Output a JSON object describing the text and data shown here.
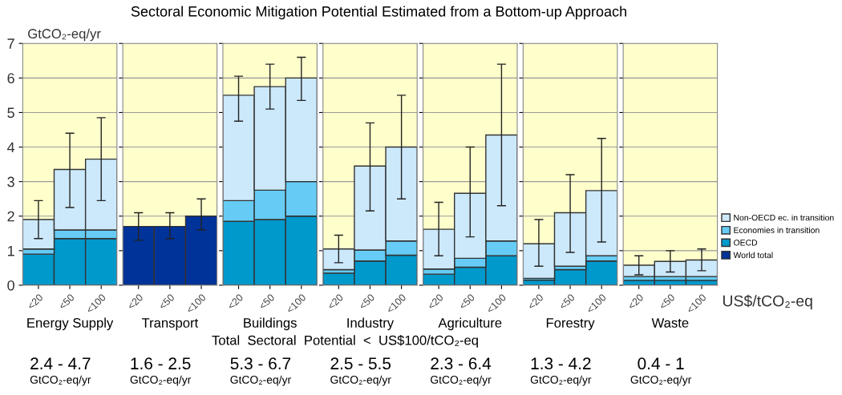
{
  "chart_data": [
    {
      "type": "other",
      "title": "Sectoral Economic Mitigation Potential Estimated from a Bottom-up Approach",
      "annotations": [
        "Total  Sectoral  Potential  <  US$100/tCO₂-eq"
      ]
    },
    {
      "type": "bar",
      "stacked": true,
      "ylabel": "GtCO₂-eq/yr",
      "xlabel": "Energy Supply",
      "categories": [
        "<20",
        "<50",
        "<100"
      ],
      "ylim": [
        0,
        7
      ],
      "yticks": [
        0,
        1,
        2,
        3,
        4,
        5,
        6,
        7
      ],
      "grid": "y",
      "legend": "right",
      "bands": [
        {
          "axis": "y",
          "from": 0,
          "to": 7,
          "color": "#ffffcc"
        }
      ],
      "series": [
        {
          "name": "OECD",
          "color": "#0099cc",
          "values": [
            0.9,
            1.35,
            1.35
          ]
        },
        {
          "name": "Economies in transition",
          "color": "#66ccf5",
          "values": [
            0.15,
            0.25,
            0.25
          ]
        },
        {
          "name": "Non-OECD ec. in transition",
          "color": "#cce9fb",
          "values": [
            0.85,
            1.75,
            2.05
          ],
          "errors": [
            [
              1.35,
              2.45
            ],
            [
              2.25,
              4.4
            ],
            [
              2.45,
              4.85
            ]
          ]
        }
      ],
      "annotations": [
        "2.4 - 4.7",
        "GtCO₂-eq/yr"
      ]
    },
    {
      "type": "bar",
      "stacked": true,
      "xlabel": "Transport",
      "categories": [
        "<20",
        "<50",
        "<100"
      ],
      "ylim": [
        0,
        7
      ],
      "yticks": [
        0,
        1,
        2,
        3,
        4,
        5,
        6,
        7
      ],
      "grid": "y",
      "tick_labels": "x",
      "bands": [
        {
          "axis": "y",
          "from": 0,
          "to": 7,
          "color": "#ffffcc"
        }
      ],
      "series": [
        {
          "name": "World total",
          "color": "#003399",
          "values": [
            1.7,
            1.7,
            2.0
          ],
          "errors": [
            [
              1.3,
              2.1
            ],
            [
              1.35,
              2.1
            ],
            [
              1.6,
              2.5
            ]
          ]
        }
      ],
      "annotations": [
        "1.6 - 2.5",
        "GtCO₂-eq/yr"
      ]
    },
    {
      "type": "bar",
      "stacked": true,
      "xlabel": "Buildings",
      "categories": [
        "<20",
        "<50",
        "<100"
      ],
      "ylim": [
        0,
        7
      ],
      "yticks": [
        0,
        1,
        2,
        3,
        4,
        5,
        6,
        7
      ],
      "grid": "y",
      "tick_labels": "x",
      "bands": [
        {
          "axis": "y",
          "from": 0,
          "to": 7,
          "color": "#ffffcc"
        }
      ],
      "series": [
        {
          "name": "OECD",
          "color": "#0099cc",
          "values": [
            1.85,
            1.9,
            2.0
          ]
        },
        {
          "name": "Economies in transition",
          "color": "#66ccf5",
          "values": [
            0.6,
            0.85,
            1.0
          ]
        },
        {
          "name": "Non-OECD ec. in transition",
          "color": "#cce9fb",
          "values": [
            3.05,
            3.0,
            3.0
          ],
          "errors": [
            [
              4.75,
              6.05
            ],
            [
              5.1,
              6.4
            ],
            [
              5.35,
              6.6
            ]
          ]
        }
      ],
      "annotations": [
        "5.3 - 6.7",
        "GtCO₂-eq/yr"
      ]
    },
    {
      "type": "bar",
      "stacked": true,
      "xlabel": "Industry",
      "categories": [
        "<20",
        "<50",
        "<100"
      ],
      "ylim": [
        0,
        7
      ],
      "yticks": [
        0,
        1,
        2,
        3,
        4,
        5,
        6,
        7
      ],
      "grid": "y",
      "tick_labels": "x",
      "bands": [
        {
          "axis": "y",
          "from": 0,
          "to": 7,
          "color": "#ffffcc"
        }
      ],
      "series": [
        {
          "name": "OECD",
          "color": "#0099cc",
          "values": [
            0.35,
            0.7,
            0.87
          ]
        },
        {
          "name": "Economies in transition",
          "color": "#66ccf5",
          "values": [
            0.1,
            0.32,
            0.41
          ]
        },
        {
          "name": "Non-OECD ec. in transition",
          "color": "#cce9fb",
          "values": [
            0.6,
            2.43,
            2.72
          ],
          "errors": [
            [
              0.65,
              1.45
            ],
            [
              2.15,
              4.7
            ],
            [
              2.5,
              5.5
            ]
          ]
        }
      ],
      "annotations": [
        "2.5 - 5.5",
        "GtCO₂-eq/yr"
      ]
    },
    {
      "type": "bar",
      "stacked": true,
      "xlabel": "Agriculture",
      "categories": [
        "<20",
        "<50",
        "<100"
      ],
      "ylim": [
        0,
        7
      ],
      "yticks": [
        0,
        1,
        2,
        3,
        4,
        5,
        6,
        7
      ],
      "grid": "y",
      "tick_labels": "x",
      "bands": [
        {
          "axis": "y",
          "from": 0,
          "to": 7,
          "color": "#ffffcc"
        }
      ],
      "series": [
        {
          "name": "OECD",
          "color": "#0099cc",
          "values": [
            0.32,
            0.52,
            0.85
          ]
        },
        {
          "name": "Economies in transition",
          "color": "#66ccf5",
          "values": [
            0.15,
            0.26,
            0.43
          ]
        },
        {
          "name": "Non-OECD ec. in transition",
          "color": "#cce9fb",
          "values": [
            1.15,
            1.88,
            3.07
          ],
          "errors": [
            [
              0.85,
              2.4
            ],
            [
              1.4,
              4.0
            ],
            [
              2.3,
              6.4
            ]
          ]
        }
      ],
      "annotations": [
        "2.3 - 6.4",
        "GtCO₂-eq/yr"
      ]
    },
    {
      "type": "bar",
      "stacked": true,
      "xlabel": "Forestry",
      "categories": [
        "<20",
        "<50",
        "<100"
      ],
      "ylim": [
        0,
        7
      ],
      "yticks": [
        0,
        1,
        2,
        3,
        4,
        5,
        6,
        7
      ],
      "grid": "y",
      "tick_labels": "x",
      "bands": [
        {
          "axis": "y",
          "from": 0,
          "to": 7,
          "color": "#ffffcc"
        }
      ],
      "series": [
        {
          "name": "OECD",
          "color": "#0099cc",
          "values": [
            0.15,
            0.45,
            0.7
          ]
        },
        {
          "name": "Economies in transition",
          "color": "#66ccf5",
          "values": [
            0.05,
            0.1,
            0.15
          ]
        },
        {
          "name": "Non-OECD ec. in transition",
          "color": "#cce9fb",
          "values": [
            1.0,
            1.55,
            1.89
          ],
          "errors": [
            [
              0.55,
              1.9
            ],
            [
              0.95,
              3.2
            ],
            [
              1.25,
              4.25
            ]
          ]
        }
      ],
      "annotations": [
        "1.3 - 4.2",
        "GtCO₂-eq/yr"
      ]
    },
    {
      "type": "bar",
      "stacked": true,
      "xlabel": "Waste",
      "categories": [
        "<20",
        "<50",
        "<100"
      ],
      "ylim": [
        0,
        7
      ],
      "yticks": [
        0,
        1,
        2,
        3,
        4,
        5,
        6,
        7
      ],
      "grid": "y",
      "tick_labels": "x",
      "legend": "right",
      "bands": [
        {
          "axis": "y",
          "from": 0,
          "to": 7,
          "color": "#ffffcc"
        }
      ],
      "series": [
        {
          "name": "OECD",
          "color": "#0099cc",
          "values": [
            0.14,
            0.14,
            0.14
          ]
        },
        {
          "name": "Economies in transition",
          "color": "#66ccf5",
          "values": [
            0.11,
            0.11,
            0.11
          ]
        },
        {
          "name": "Non-OECD ec. in transition",
          "color": "#cce9fb",
          "values": [
            0.33,
            0.44,
            0.48
          ],
          "errors": [
            [
              0.3,
              0.85
            ],
            [
              0.38,
              1.0
            ],
            [
              0.42,
              1.05
            ]
          ]
        }
      ],
      "annotations": [
        "0.4 - 1",
        "GtCO₂-eq/yr",
        "US$/tCO₂-eq"
      ]
    }
  ]
}
